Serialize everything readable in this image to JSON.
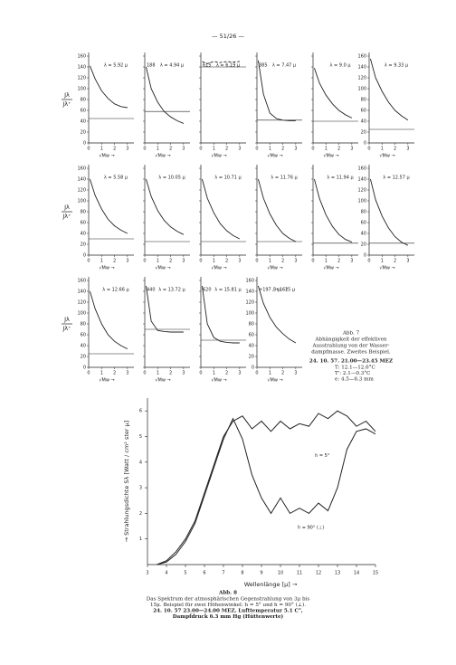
{
  "header": "— 51/26 —",
  "panels": {
    "ylabel_num": "Jλ",
    "ylabel_den": "Jλ⁺",
    "xlabel": "√Mw →",
    "xlim": [
      0,
      3.5
    ],
    "ylim": [
      0,
      160
    ],
    "xticks": [
      0,
      1,
      2,
      3
    ],
    "yticks": [
      0,
      20,
      40,
      60,
      80,
      100,
      120,
      140,
      160
    ],
    "curve_x": [
      0.1,
      0.5,
      1,
      1.5,
      2,
      2.5,
      3
    ],
    "items": [
      {
        "label": "λ = 5.92 μ",
        "curve": [
          142,
          118,
          96,
          82,
          72,
          67,
          65
        ],
        "level": 45,
        "show_yticks": true
      },
      {
        "label": "λ = 4.94 μ",
        "note": "188",
        "curve": [
          140,
          100,
          75,
          58,
          48,
          41,
          36
        ],
        "level": 58,
        "show_yticks": false
      },
      {
        "label": "λ = 6.19 μ",
        "note": "615",
        "curve": [
          150,
          146,
          150,
          148,
          150,
          149,
          150
        ],
        "level": 140,
        "dashed": true,
        "show_yticks": false
      },
      {
        "label": "λ = 7.47 μ",
        "note": "385",
        "curve": [
          152,
          90,
          55,
          45,
          42,
          41,
          41
        ],
        "level": 42,
        "show_yticks": false
      },
      {
        "label": "λ = 9.0 μ",
        "curve": [
          138,
          110,
          88,
          72,
          60,
          52,
          46
        ],
        "level": 40,
        "show_yticks": false
      },
      {
        "label": "λ = 9.33 μ",
        "curve": [
          155,
          120,
          95,
          75,
          60,
          50,
          42
        ],
        "level": 25,
        "show_yticks": true
      },
      {
        "label": "λ = 5.58 μ",
        "curve": [
          140,
          110,
          85,
          66,
          54,
          46,
          40
        ],
        "level": 30,
        "show_yticks": true
      },
      {
        "label": "λ = 10.05 μ",
        "curve": [
          140,
          108,
          82,
          64,
          52,
          44,
          38
        ],
        "level": 25,
        "show_yticks": false
      },
      {
        "label": "λ = 10.71 μ",
        "curve": [
          140,
          105,
          78,
          58,
          45,
          36,
          30
        ],
        "level": 25,
        "show_yticks": false
      },
      {
        "label": "λ = 11.76 μ",
        "curve": [
          140,
          105,
          76,
          55,
          40,
          31,
          25
        ],
        "level": 25,
        "show_yticks": false
      },
      {
        "label": "λ = 11.94 μ",
        "curve": [
          140,
          104,
          74,
          53,
          38,
          29,
          24
        ],
        "level": 22,
        "show_yticks": false
      },
      {
        "label": "λ = 12.57 μ",
        "curve": [
          140,
          102,
          72,
          50,
          34,
          24,
          18
        ],
        "level": 22,
        "show_yticks": true
      },
      {
        "label": "λ = 12.66 μ",
        "curve": [
          140,
          108,
          80,
          60,
          48,
          40,
          34
        ],
        "level": 25,
        "show_yticks": true
      },
      {
        "label": "λ = 13.72 μ",
        "note": "440",
        "curve": [
          150,
          85,
          68,
          66,
          65,
          65,
          65
        ],
        "level": 70,
        "show_yticks": false
      },
      {
        "label": "λ = 15.81 μ",
        "note": "620",
        "curve": [
          150,
          80,
          55,
          48,
          46,
          45,
          45
        ],
        "level": 50,
        "show_yticks": false
      },
      {
        "label": "3 μ - 15 μ",
        "note": "+197 / +162",
        "curve": [
          150,
          118,
          92,
          74,
          62,
          52,
          45
        ],
        "show_yticks": true
      }
    ]
  },
  "abb7": {
    "title": "Abb. 7",
    "lines": [
      "Abhängigkeit der effektiven",
      "Ausstrahlung von der Wasser-",
      "dampfmasse. Zweites Beispiel."
    ],
    "date": "24. 10. 57.   21.00—23.45 MEZ",
    "params": [
      "T: 12.1—12.6°C",
      "T': 2.1—0.3°C",
      "e: 4.5—6.3 mm"
    ]
  },
  "chart_data": {
    "type": "line",
    "xlabel": "Wellenlänge [μ] →",
    "ylabel": "→ Strahlungsdichte Sλ [Watt / cm² ster μ]",
    "xlim": [
      3,
      15
    ],
    "ylim": [
      0,
      6.5
    ],
    "xticks": [
      3,
      4,
      5,
      6,
      7,
      8,
      9,
      10,
      11,
      12,
      13,
      14,
      15
    ],
    "yticks": [
      1,
      2,
      3,
      4,
      5,
      6
    ],
    "x": [
      3.5,
      4,
      4.5,
      5,
      5.5,
      6,
      6.5,
      7,
      7.5,
      8,
      8.5,
      9,
      9.5,
      10,
      10.5,
      11,
      11.5,
      12,
      12.5,
      13,
      13.5,
      14,
      14.5,
      15
    ],
    "series": [
      {
        "name": "h = 5°",
        "color": "#222",
        "values": [
          0,
          0.15,
          0.5,
          1,
          1.7,
          2.8,
          3.9,
          5,
          5.6,
          5.8,
          5.3,
          5.6,
          5.2,
          5.6,
          5.3,
          5.5,
          5.4,
          5.9,
          5.7,
          6.0,
          5.8,
          5.4,
          5.6,
          5.2
        ]
      },
      {
        "name": "h = 90° (⊥)",
        "color": "#222",
        "values": [
          0,
          0.1,
          0.4,
          0.9,
          1.6,
          2.7,
          3.8,
          4.9,
          5.7,
          4.9,
          3.5,
          2.6,
          2.0,
          2.6,
          2.0,
          2.2,
          2.0,
          2.4,
          2.1,
          3.0,
          4.5,
          5.2,
          5.3,
          5.1
        ]
      }
    ]
  },
  "abb8": {
    "title": "Abb. 8",
    "lines": [
      "Das Spektrum der atmosphärischen Gegenstrahlung von 3μ bis",
      "15μ. Beispiel für zwei Höhenwinkel: h = 5° und h = 90° (⊥)."
    ],
    "bold": [
      "24. 10. 57 23.00—24.00 MEZ, Lufttemperatur 5.1 C°,",
      "Dampfdruck 6.3 mm Hg (Hüttenwerte)"
    ]
  }
}
